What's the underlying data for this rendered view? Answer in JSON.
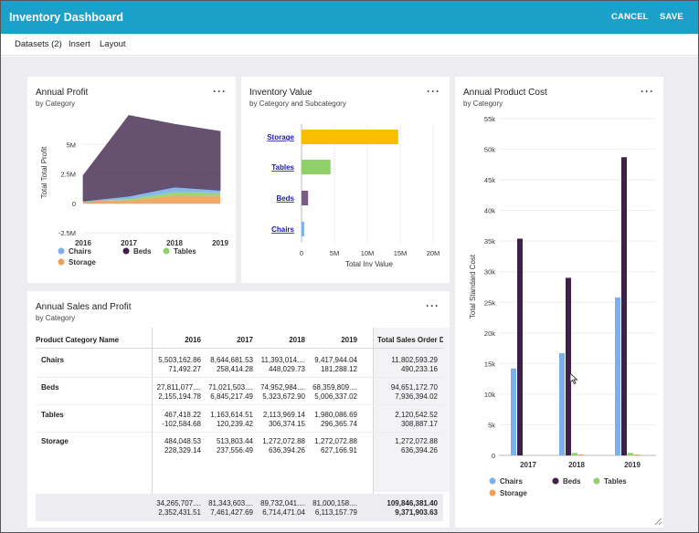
{
  "app": {
    "title": "Inventory Dashboard",
    "cancel": "CANCEL",
    "save": "SAVE"
  },
  "menu": {
    "datasets": "Datasets (2)",
    "insert": "Insert",
    "layout": "Layout"
  },
  "colors": {
    "accent": "#1aa0c9",
    "chairs": "#7bb0e8",
    "beds": "#3d2148",
    "tables": "#8fd068",
    "storage": "#f0a054",
    "storage_bar": "#fbbd00"
  },
  "more_icon": "more-horizontal-icon",
  "profit": {
    "title": "Annual Profit",
    "subtitle": "by Category",
    "ylabel": "Total Total Profit",
    "yticks": [
      "5M",
      "2.5M",
      "0",
      "-2.5M"
    ],
    "xticks": [
      "2016",
      "2017",
      "2018",
      "2019"
    ],
    "legend": [
      "Chairs",
      "Beds",
      "Tables",
      "Storage"
    ],
    "chart_data": {
      "type": "area",
      "title": "Annual Profit",
      "x": [
        "2016",
        "2017",
        "2018",
        "2019"
      ],
      "ylim": [
        -2500000,
        7500000
      ],
      "series": [
        {
          "name": "Storage",
          "values": [
            228329.14,
            237556.49,
            636394.26,
            627166.91
          ]
        },
        {
          "name": "Tables",
          "values": [
            -102584.68,
            120239.42,
            306374.15,
            296365.74
          ]
        },
        {
          "name": "Chairs",
          "values": [
            71492.27,
            258414.28,
            448029.73,
            181288.12
          ]
        },
        {
          "name": "Beds",
          "values": [
            2155194.78,
            6845217.49,
            5323672.9,
            5006337.02
          ]
        }
      ]
    }
  },
  "inventory": {
    "title": "Inventory Value",
    "subtitle": "by Category and Subcategory",
    "xlabel": "Total Inv Value",
    "xticks": [
      "0",
      "5M",
      "10M",
      "15M",
      "20M"
    ],
    "chart_data": {
      "type": "bar",
      "orientation": "horizontal",
      "categories": [
        "Storage",
        "Tables",
        "Beds",
        "Chairs"
      ],
      "values": [
        14700000,
        4400000,
        1000000,
        400000
      ],
      "xlim": [
        0,
        20000000
      ],
      "xlabel": "Total Inv Value"
    }
  },
  "cost": {
    "title": "Annual Product Cost",
    "subtitle": "by Category",
    "ylabel": "Total Standard Cost",
    "yticks": [
      "55k",
      "50k",
      "45k",
      "40k",
      "35k",
      "30k",
      "25k",
      "20k",
      "15k",
      "10k",
      "5k",
      "0"
    ],
    "xticks": [
      "2017",
      "2018",
      "2019"
    ],
    "legend": [
      "Chairs",
      "Beds",
      "Tables",
      "Storage"
    ],
    "chart_data": {
      "type": "bar",
      "categories": [
        "2017",
        "2018",
        "2019"
      ],
      "ylim": [
        0,
        55000
      ],
      "ylabel": "Total Standard Cost",
      "series": [
        {
          "name": "Chairs",
          "values": [
            14200,
            16700,
            25800
          ]
        },
        {
          "name": "Beds",
          "values": [
            35400,
            29000,
            48700
          ]
        },
        {
          "name": "Tables",
          "values": [
            0,
            400,
            400
          ]
        },
        {
          "name": "Storage",
          "values": [
            0,
            150,
            150
          ]
        }
      ]
    }
  },
  "sales": {
    "title": "Annual Sales and Profit",
    "subtitle": "by Category",
    "col_header": "Product Category Name",
    "years": [
      "2016",
      "2017",
      "2018",
      "2019"
    ],
    "total_header": "Total Sales Order D...",
    "rows": [
      {
        "name": "Chairs",
        "vals": [
          [
            "5,503,162.86",
            "71,492.27"
          ],
          [
            "8,644,681.53",
            "258,414.28"
          ],
          [
            "11,393,014....",
            "448,029.73"
          ],
          [
            "9,417,944.04",
            "181,288.12"
          ]
        ],
        "total": [
          "11,802,593.29",
          "490,233.16"
        ]
      },
      {
        "name": "Beds",
        "vals": [
          [
            "27,811,077....",
            "2,155,194.78"
          ],
          [
            "71,021,503....",
            "6,845,217.49"
          ],
          [
            "74,952,984....",
            "5,323,672.90"
          ],
          [
            "68,359,809....",
            "5,006,337.02"
          ]
        ],
        "total": [
          "94,651,172.70",
          "7,936,394.02"
        ]
      },
      {
        "name": "Tables",
        "vals": [
          [
            "467,418.22",
            "-102,584.68"
          ],
          [
            "1,163,614.51",
            "120,239.42"
          ],
          [
            "2,113,969.14",
            "306,374.15"
          ],
          [
            "1,980,086.69",
            "296,365.74"
          ]
        ],
        "total": [
          "2,120,542.52",
          "308,887.17"
        ]
      },
      {
        "name": "Storage",
        "vals": [
          [
            "484,048.53",
            "228,329.14"
          ],
          [
            "513,803.44",
            "237,556.49"
          ],
          [
            "1,272,072.88",
            "636,394.26"
          ],
          [
            "1,272,072.88",
            "627,166.91"
          ]
        ],
        "total": [
          "1,272,072.88",
          "636,394.26"
        ]
      }
    ],
    "footer": {
      "vals": [
        [
          "34,265,707....",
          "2,352,431.51"
        ],
        [
          "81,343,603....",
          "7,461,427.69"
        ],
        [
          "89,732,041....",
          "6,714,471.04"
        ],
        [
          "81,000,158....",
          "6,113,157.79"
        ]
      ],
      "total": [
        "109,846,381.40",
        "9,371,903.63"
      ]
    }
  }
}
